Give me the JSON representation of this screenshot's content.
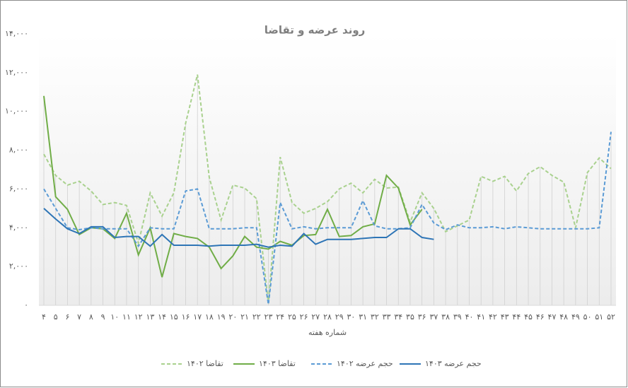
{
  "chart_data": {
    "type": "line",
    "title": "روند عرضه و تقاضا",
    "x_label": "شماره هفته",
    "categories": [
      "۴",
      "۵",
      "۶",
      "۷",
      "۸",
      "۹",
      "۱۰",
      "۱۱",
      "۱۲",
      "۱۳",
      "۱۴",
      "۱۵",
      "۱۶",
      "۱۷",
      "۱۸",
      "۱۹",
      "۲۰",
      "۲۱",
      "۲۲",
      "۲۳",
      "۲۴",
      "۲۵",
      "۲۶",
      "۲۷",
      "۲۸",
      "۲۹",
      "۳۰",
      "۳۱",
      "۳۲",
      "۳۳",
      "۳۴",
      "۳۵",
      "۳۶",
      "۳۷",
      "۳۸",
      "۳۹",
      "۴۰",
      "۴۱",
      "۴۲",
      "۴۳",
      "۴۴",
      "۴۵",
      "۴۶",
      "۴۷",
      "۴۸",
      "۴۹",
      "۵۰",
      "۵۱",
      "۵۲"
    ],
    "ylim": [
      0,
      14000
    ],
    "yticks": [
      {
        "value": 0,
        "label": "۰"
      },
      {
        "value": 2000,
        "label": "۲,۰۰۰"
      },
      {
        "value": 4000,
        "label": "۴,۰۰۰"
      },
      {
        "value": 6000,
        "label": "۶,۰۰۰"
      },
      {
        "value": 8000,
        "label": "۸,۰۰۰"
      },
      {
        "value": 10000,
        "label": "۱۰,۰۰۰"
      },
      {
        "value": 12000,
        "label": "۱۲,۰۰۰"
      },
      {
        "value": 14000,
        "label": "۱۴,۰۰۰"
      }
    ],
    "grid": false,
    "legend": "bottom",
    "series": [
      {
        "name": "تقاضا ۱۴۰۲",
        "color": "#a9d18e",
        "dashed": true,
        "values": [
          7800,
          6700,
          6200,
          6400,
          5900,
          5200,
          5300,
          5150,
          3200,
          5800,
          4600,
          5800,
          9400,
          11900,
          6600,
          4400,
          6200,
          6050,
          5500,
          100,
          7650,
          5300,
          4750,
          5000,
          5350,
          6000,
          6300,
          5800,
          6500,
          6050,
          6100,
          4300,
          5800,
          5000,
          3800,
          4100,
          4400,
          6650,
          6400,
          6650,
          5900,
          6800,
          7150,
          6700,
          6350,
          4000,
          6850,
          7600,
          7050
        ]
      },
      {
        "name": "تقاضا ۱۴۰۳",
        "color": "#70ad47",
        "dashed": false,
        "values": [
          10800,
          5600,
          4950,
          3650,
          4000,
          3950,
          3450,
          4750,
          2600,
          4000,
          1450,
          3700,
          3550,
          3450,
          3000,
          1900,
          2550,
          3550,
          3000,
          2900,
          3300,
          3100,
          3600,
          3650,
          4950,
          3550,
          3600,
          4050,
          4200,
          6700,
          6050,
          4150,
          4950,
          null,
          null,
          null,
          null,
          null,
          null,
          null,
          null,
          null,
          null,
          null,
          null,
          null,
          null,
          null,
          null
        ]
      },
      {
        "name": "حجم عرضه ۱۴۰۲",
        "color": "#5b9bd5",
        "dashed": true,
        "values": [
          6000,
          5000,
          4000,
          3900,
          4000,
          3950,
          3950,
          3950,
          3050,
          4000,
          3950,
          3950,
          5900,
          6000,
          3950,
          3950,
          3950,
          4000,
          4000,
          50,
          5300,
          3950,
          4050,
          3950,
          4000,
          4000,
          4000,
          5400,
          4100,
          3950,
          3950,
          4000,
          5200,
          4250,
          3900,
          4150,
          4000,
          4000,
          4050,
          3950,
          4050,
          4000,
          3950,
          3950,
          3950,
          3950,
          3950,
          4000,
          8950
        ]
      },
      {
        "name": "حجم عرضه ۱۴۰۳",
        "color": "#2e75b6",
        "dashed": false,
        "values": [
          5000,
          4450,
          3950,
          3700,
          4050,
          4050,
          3500,
          3550,
          3550,
          3050,
          3650,
          3100,
          3100,
          3100,
          3050,
          3100,
          3100,
          3100,
          3150,
          3000,
          3100,
          3050,
          3700,
          3150,
          3400,
          3400,
          3400,
          3450,
          3500,
          3500,
          3950,
          3950,
          3500,
          3400,
          null,
          null,
          null,
          null,
          null,
          null,
          null,
          null,
          null,
          null,
          null,
          null,
          null,
          null,
          null
        ]
      }
    ]
  }
}
